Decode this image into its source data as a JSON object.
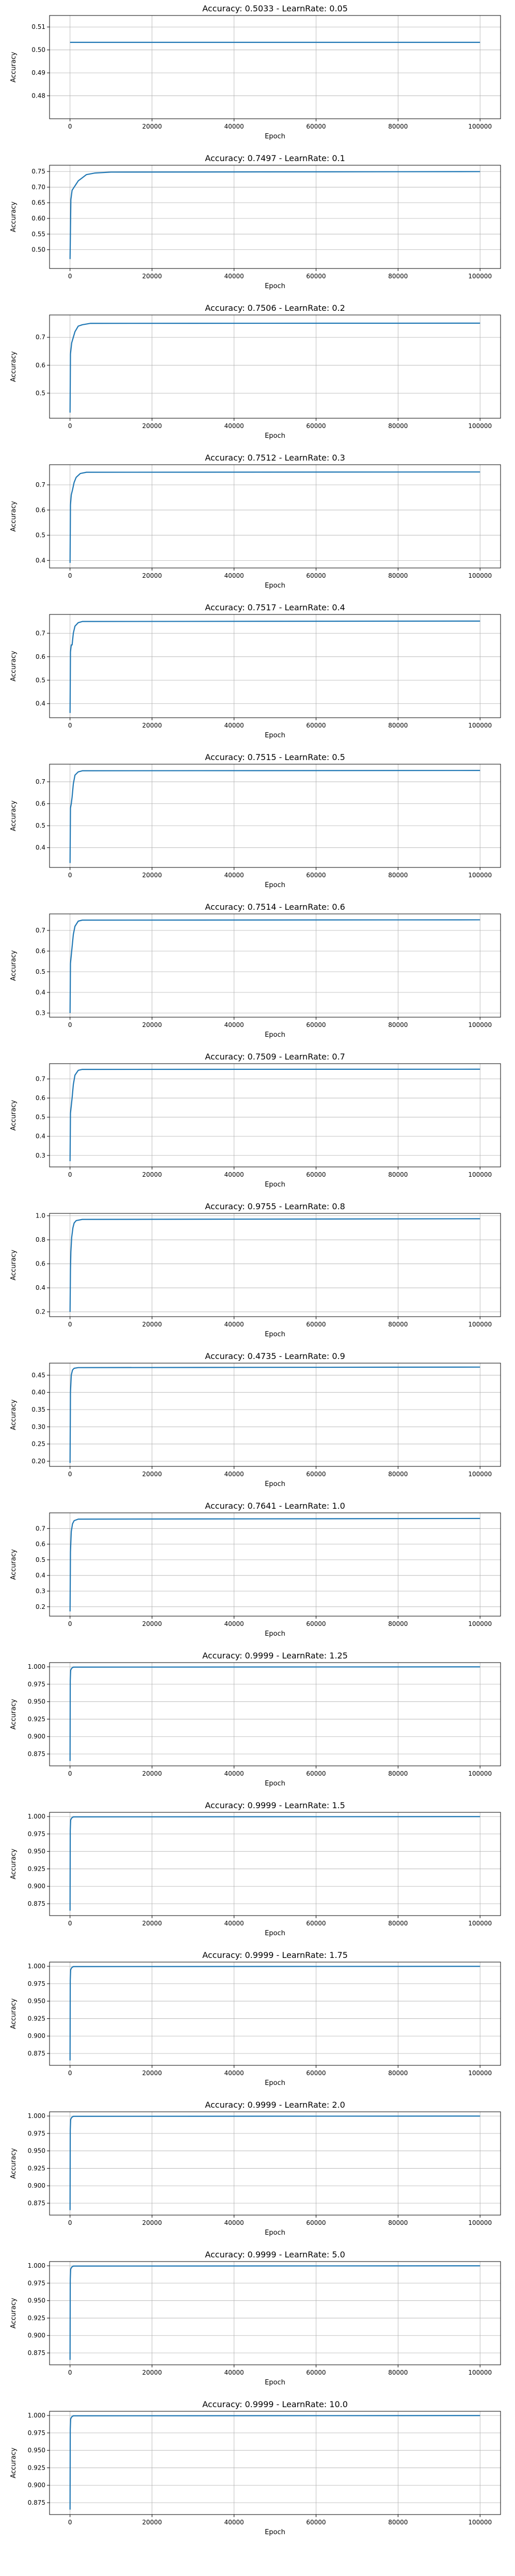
{
  "chart_data": [
    {
      "type": "line",
      "title": "Accuracy: 0.5033 - LearnRate: 0.05",
      "xlabel": "Epoch",
      "ylabel": "Accuracy",
      "xlim": [
        -5000,
        105000
      ],
      "ylim": [
        0.47,
        0.515
      ],
      "xticks": [
        0,
        20000,
        40000,
        60000,
        80000,
        100000
      ],
      "yticks": [
        0.48,
        0.49,
        0.5,
        0.51
      ],
      "yticklabels": [
        "0.48",
        "0.49",
        "0.50",
        "0.51"
      ],
      "grid": true,
      "series": [
        {
          "x": [
            0,
            100000
          ],
          "y": [
            0.5033,
            0.5033
          ]
        }
      ]
    },
    {
      "type": "line",
      "title": "Accuracy: 0.7497 - LearnRate: 0.1",
      "xlabel": "Epoch",
      "ylabel": "Accuracy",
      "xlim": [
        -5000,
        105000
      ],
      "ylim": [
        0.44,
        0.77
      ],
      "xticks": [
        0,
        20000,
        40000,
        60000,
        80000,
        100000
      ],
      "yticks": [
        0.5,
        0.55,
        0.6,
        0.65,
        0.7,
        0.75
      ],
      "yticklabels": [
        "0.50",
        "0.55",
        "0.60",
        "0.65",
        "0.70",
        "0.75"
      ],
      "grid": true,
      "series": [
        {
          "x": [
            0,
            200,
            500,
            1000,
            1500,
            2000,
            3000,
            4000,
            6000,
            10000,
            100000
          ],
          "y": [
            0.47,
            0.66,
            0.69,
            0.7,
            0.71,
            0.72,
            0.73,
            0.74,
            0.745,
            0.748,
            0.7497
          ]
        }
      ]
    },
    {
      "type": "line",
      "title": "Accuracy: 0.7506 - LearnRate: 0.2",
      "xlabel": "Epoch",
      "ylabel": "Accuracy",
      "xlim": [
        -5000,
        105000
      ],
      "ylim": [
        0.41,
        0.78
      ],
      "xticks": [
        0,
        20000,
        40000,
        60000,
        80000,
        100000
      ],
      "yticks": [
        0.5,
        0.6,
        0.7
      ],
      "yticklabels": [
        "0.5",
        "0.6",
        "0.7"
      ],
      "grid": true,
      "series": [
        {
          "x": [
            0,
            100,
            400,
            800,
            1200,
            2000,
            3000,
            5000,
            100000
          ],
          "y": [
            0.43,
            0.64,
            0.68,
            0.7,
            0.72,
            0.74,
            0.745,
            0.75,
            0.7506
          ]
        }
      ]
    },
    {
      "type": "line",
      "title": "Accuracy: 0.7512 - LearnRate: 0.3",
      "xlabel": "Epoch",
      "ylabel": "Accuracy",
      "xlim": [
        -5000,
        105000
      ],
      "ylim": [
        0.37,
        0.78
      ],
      "xticks": [
        0,
        20000,
        40000,
        60000,
        80000,
        100000
      ],
      "yticks": [
        0.4,
        0.5,
        0.6,
        0.7
      ],
      "yticklabels": [
        "0.4",
        "0.5",
        "0.6",
        "0.7"
      ],
      "grid": true,
      "series": [
        {
          "x": [
            0,
            100,
            300,
            600,
            1000,
            1500,
            2500,
            4000,
            100000
          ],
          "y": [
            0.39,
            0.62,
            0.66,
            0.68,
            0.71,
            0.73,
            0.745,
            0.75,
            0.7512
          ]
        }
      ]
    },
    {
      "type": "line",
      "title": "Accuracy: 0.7517 - LearnRate: 0.4",
      "xlabel": "Epoch",
      "ylabel": "Accuracy",
      "xlim": [
        -5000,
        105000
      ],
      "ylim": [
        0.34,
        0.78
      ],
      "xticks": [
        0,
        20000,
        40000,
        60000,
        80000,
        100000
      ],
      "yticks": [
        0.4,
        0.5,
        0.6,
        0.7
      ],
      "yticklabels": [
        "0.4",
        "0.5",
        "0.6",
        "0.7"
      ],
      "grid": true,
      "series": [
        {
          "x": [
            0,
            100,
            300,
            500,
            800,
            1200,
            2000,
            3000,
            100000
          ],
          "y": [
            0.36,
            0.62,
            0.65,
            0.65,
            0.7,
            0.73,
            0.745,
            0.75,
            0.7517
          ]
        }
      ]
    },
    {
      "type": "line",
      "title": "Accuracy: 0.7515 - LearnRate: 0.5",
      "xlabel": "Epoch",
      "ylabel": "Accuracy",
      "xlim": [
        -5000,
        105000
      ],
      "ylim": [
        0.31,
        0.78
      ],
      "xticks": [
        0,
        20000,
        40000,
        60000,
        80000,
        100000
      ],
      "yticks": [
        0.4,
        0.5,
        0.6,
        0.7
      ],
      "yticklabels": [
        "0.4",
        "0.5",
        "0.6",
        "0.7"
      ],
      "grid": true,
      "series": [
        {
          "x": [
            0,
            100,
            300,
            500,
            800,
            1200,
            2000,
            3000,
            100000
          ],
          "y": [
            0.33,
            0.58,
            0.6,
            0.63,
            0.69,
            0.73,
            0.745,
            0.75,
            0.7515
          ]
        }
      ]
    },
    {
      "type": "line",
      "title": "Accuracy: 0.7514 - LearnRate: 0.6",
      "xlabel": "Epoch",
      "ylabel": "Accuracy",
      "xlim": [
        -5000,
        105000
      ],
      "ylim": [
        0.28,
        0.78
      ],
      "xticks": [
        0,
        20000,
        40000,
        60000,
        80000,
        100000
      ],
      "yticks": [
        0.3,
        0.4,
        0.5,
        0.6,
        0.7
      ],
      "yticklabels": [
        "0.3",
        "0.4",
        "0.5",
        "0.6",
        "0.7"
      ],
      "grid": true,
      "series": [
        {
          "x": [
            0,
            100,
            300,
            500,
            800,
            1200,
            2000,
            3000,
            100000
          ],
          "y": [
            0.3,
            0.54,
            0.58,
            0.62,
            0.68,
            0.72,
            0.745,
            0.75,
            0.7514
          ]
        }
      ]
    },
    {
      "type": "line",
      "title": "Accuracy: 0.7509 - LearnRate: 0.7",
      "xlabel": "Epoch",
      "ylabel": "Accuracy",
      "xlim": [
        -5000,
        105000
      ],
      "ylim": [
        0.24,
        0.78
      ],
      "xticks": [
        0,
        20000,
        40000,
        60000,
        80000,
        100000
      ],
      "yticks": [
        0.3,
        0.4,
        0.5,
        0.6,
        0.7
      ],
      "yticklabels": [
        "0.3",
        "0.4",
        "0.5",
        "0.6",
        "0.7"
      ],
      "grid": true,
      "series": [
        {
          "x": [
            0,
            100,
            300,
            500,
            800,
            1200,
            2000,
            3000,
            100000
          ],
          "y": [
            0.27,
            0.52,
            0.56,
            0.6,
            0.67,
            0.72,
            0.745,
            0.75,
            0.7509
          ]
        }
      ]
    },
    {
      "type": "line",
      "title": "Accuracy: 0.9755 - LearnRate: 0.8",
      "xlabel": "Epoch",
      "ylabel": "Accuracy",
      "xlim": [
        -5000,
        105000
      ],
      "ylim": [
        0.16,
        1.02
      ],
      "xticks": [
        0,
        20000,
        40000,
        60000,
        80000,
        100000
      ],
      "yticks": [
        0.2,
        0.4,
        0.6,
        0.8,
        1.0
      ],
      "yticklabels": [
        "0.2",
        "0.4",
        "0.6",
        "0.8",
        "1.0"
      ],
      "grid": true,
      "series": [
        {
          "x": [
            0,
            100,
            200,
            400,
            700,
            1000,
            1500,
            3000,
            100000
          ],
          "y": [
            0.2,
            0.55,
            0.7,
            0.82,
            0.9,
            0.94,
            0.96,
            0.97,
            0.9755
          ]
        }
      ]
    },
    {
      "type": "line",
      "title": "Accuracy: 0.4735 - LearnRate: 0.9",
      "xlabel": "Epoch",
      "ylabel": "Accuracy",
      "xlim": [
        -5000,
        105000
      ],
      "ylim": [
        0.185,
        0.485
      ],
      "xticks": [
        0,
        20000,
        40000,
        60000,
        80000,
        100000
      ],
      "yticks": [
        0.2,
        0.25,
        0.3,
        0.35,
        0.4,
        0.45
      ],
      "yticklabels": [
        "0.20",
        "0.25",
        "0.30",
        "0.35",
        "0.40",
        "0.45"
      ],
      "grid": true,
      "series": [
        {
          "x": [
            0,
            100,
            300,
            600,
            1000,
            2000,
            100000
          ],
          "y": [
            0.195,
            0.4,
            0.45,
            0.465,
            0.47,
            0.472,
            0.4735
          ]
        }
      ]
    },
    {
      "type": "line",
      "title": "Accuracy: 0.7641 - LearnRate: 1.0",
      "xlabel": "Epoch",
      "ylabel": "Accuracy",
      "xlim": [
        -5000,
        105000
      ],
      "ylim": [
        0.14,
        0.8
      ],
      "xticks": [
        0,
        20000,
        40000,
        60000,
        80000,
        100000
      ],
      "yticks": [
        0.2,
        0.3,
        0.4,
        0.5,
        0.6,
        0.7
      ],
      "yticklabels": [
        "0.2",
        "0.3",
        "0.4",
        "0.5",
        "0.6",
        "0.7"
      ],
      "grid": true,
      "series": [
        {
          "x": [
            0,
            100,
            300,
            600,
            1000,
            2000,
            100000
          ],
          "y": [
            0.17,
            0.55,
            0.68,
            0.73,
            0.75,
            0.76,
            0.7641
          ]
        }
      ]
    },
    {
      "type": "line",
      "title": "Accuracy: 0.9999 - LearnRate: 1.25",
      "xlabel": "Epoch",
      "ylabel": "Accuracy",
      "xlim": [
        -5000,
        105000
      ],
      "ylim": [
        0.858,
        1.006
      ],
      "xticks": [
        0,
        20000,
        40000,
        60000,
        80000,
        100000
      ],
      "yticks": [
        0.875,
        0.9,
        0.925,
        0.95,
        0.975,
        1.0
      ],
      "yticklabels": [
        "0.875",
        "0.900",
        "0.925",
        "0.950",
        "0.975",
        "1.000"
      ],
      "grid": true,
      "series": [
        {
          "x": [
            0,
            50,
            150,
            400,
            800,
            100000
          ],
          "y": [
            0.865,
            0.98,
            0.995,
            0.998,
            0.9995,
            0.9999
          ]
        }
      ]
    },
    {
      "type": "line",
      "title": "Accuracy: 0.9999 - LearnRate: 1.5",
      "xlabel": "Epoch",
      "ylabel": "Accuracy",
      "xlim": [
        -5000,
        105000
      ],
      "ylim": [
        0.858,
        1.006
      ],
      "xticks": [
        0,
        20000,
        40000,
        60000,
        80000,
        100000
      ],
      "yticks": [
        0.875,
        0.9,
        0.925,
        0.95,
        0.975,
        1.0
      ],
      "yticklabels": [
        "0.875",
        "0.900",
        "0.925",
        "0.950",
        "0.975",
        "1.000"
      ],
      "grid": true,
      "series": [
        {
          "x": [
            0,
            50,
            150,
            400,
            800,
            100000
          ],
          "y": [
            0.865,
            0.98,
            0.995,
            0.998,
            0.9995,
            0.9999
          ]
        }
      ]
    },
    {
      "type": "line",
      "title": "Accuracy: 0.9999 - LearnRate: 1.75",
      "xlabel": "Epoch",
      "ylabel": "Accuracy",
      "xlim": [
        -5000,
        105000
      ],
      "ylim": [
        0.858,
        1.006
      ],
      "xticks": [
        0,
        20000,
        40000,
        60000,
        80000,
        100000
      ],
      "yticks": [
        0.875,
        0.9,
        0.925,
        0.95,
        0.975,
        1.0
      ],
      "yticklabels": [
        "0.875",
        "0.900",
        "0.925",
        "0.950",
        "0.975",
        "1.000"
      ],
      "grid": true,
      "series": [
        {
          "x": [
            0,
            50,
            150,
            400,
            800,
            100000
          ],
          "y": [
            0.865,
            0.98,
            0.995,
            0.998,
            0.9995,
            0.9999
          ]
        }
      ]
    },
    {
      "type": "line",
      "title": "Accuracy: 0.9999 - LearnRate: 2.0",
      "xlabel": "Epoch",
      "ylabel": "Accuracy",
      "xlim": [
        -5000,
        105000
      ],
      "ylim": [
        0.858,
        1.006
      ],
      "xticks": [
        0,
        20000,
        40000,
        60000,
        80000,
        100000
      ],
      "yticks": [
        0.875,
        0.9,
        0.925,
        0.95,
        0.975,
        1.0
      ],
      "yticklabels": [
        "0.875",
        "0.900",
        "0.925",
        "0.950",
        "0.975",
        "1.000"
      ],
      "grid": true,
      "series": [
        {
          "x": [
            0,
            50,
            150,
            400,
            800,
            100000
          ],
          "y": [
            0.865,
            0.98,
            0.995,
            0.998,
            0.9995,
            0.9999
          ]
        }
      ]
    },
    {
      "type": "line",
      "title": "Accuracy: 0.9999 - LearnRate: 5.0",
      "xlabel": "Epoch",
      "ylabel": "Accuracy",
      "xlim": [
        -5000,
        105000
      ],
      "ylim": [
        0.858,
        1.006
      ],
      "xticks": [
        0,
        20000,
        40000,
        60000,
        80000,
        100000
      ],
      "yticks": [
        0.875,
        0.9,
        0.925,
        0.95,
        0.975,
        1.0
      ],
      "yticklabels": [
        "0.875",
        "0.900",
        "0.925",
        "0.950",
        "0.975",
        "1.000"
      ],
      "grid": true,
      "series": [
        {
          "x": [
            0,
            50,
            150,
            400,
            800,
            100000
          ],
          "y": [
            0.865,
            0.98,
            0.995,
            0.998,
            0.9995,
            0.9999
          ]
        }
      ]
    },
    {
      "type": "line",
      "title": "Accuracy: 0.9999 - LearnRate: 10.0",
      "xlabel": "Epoch",
      "ylabel": "Accuracy",
      "xlim": [
        -5000,
        105000
      ],
      "ylim": [
        0.858,
        1.006
      ],
      "xticks": [
        0,
        20000,
        40000,
        60000,
        80000,
        100000
      ],
      "yticks": [
        0.875,
        0.9,
        0.925,
        0.95,
        0.975,
        1.0
      ],
      "yticklabels": [
        "0.875",
        "0.900",
        "0.925",
        "0.950",
        "0.975",
        "1.000"
      ],
      "grid": true,
      "series": [
        {
          "x": [
            0,
            50,
            150,
            400,
            800,
            100000
          ],
          "y": [
            0.865,
            0.98,
            0.995,
            0.998,
            0.9995,
            0.9999
          ]
        }
      ]
    }
  ],
  "colors": {
    "line": "#1f77b4",
    "grid": "#b0b0b0",
    "axes": "#000000",
    "background": "#ffffff"
  }
}
